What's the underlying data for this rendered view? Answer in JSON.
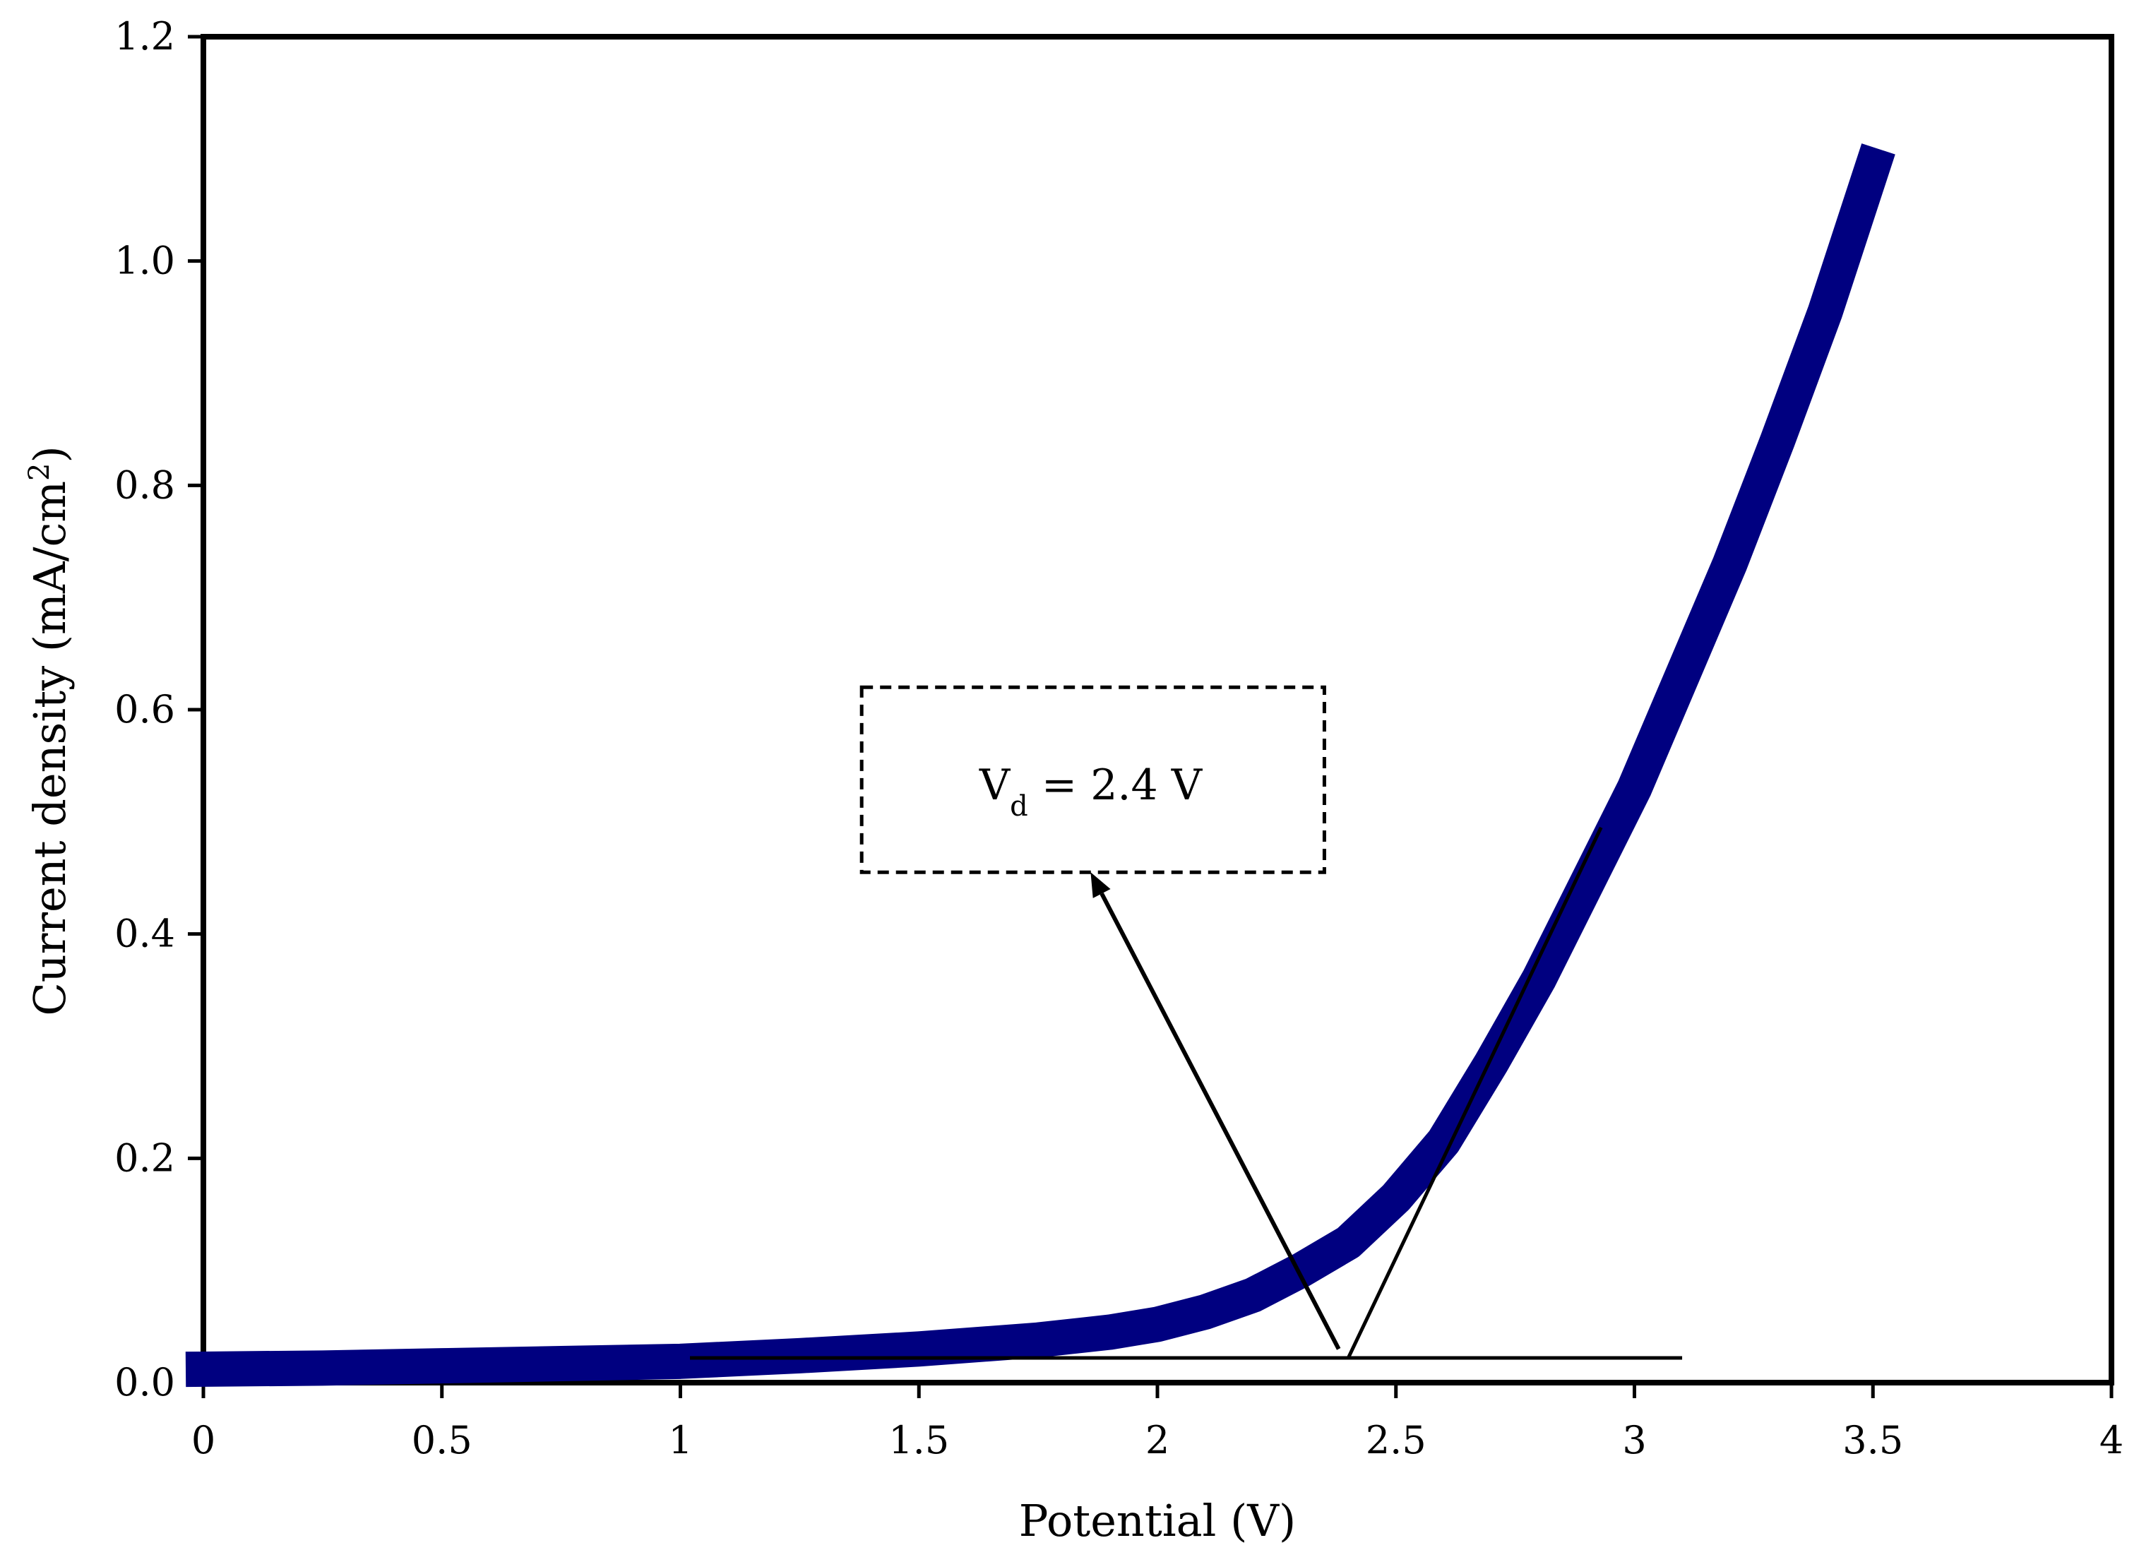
{
  "chart_data": {
    "type": "line",
    "title": "",
    "xlabel": "Potential (V)",
    "ylabel": "Current density (mA/cm",
    "ylabel_superscript": "2",
    "ylabel_suffix": ")",
    "xlim": [
      0,
      4
    ],
    "ylim": [
      0,
      1.2
    ],
    "x_ticks": [
      0,
      0.5,
      1,
      1.5,
      2,
      2.5,
      3,
      3.5,
      4
    ],
    "x_tick_labels": [
      "0",
      "0.5",
      "1",
      "1.5",
      "2",
      "2.5",
      "3",
      "3.5",
      "4"
    ],
    "y_ticks": [
      0,
      0.2,
      0.4,
      0.6,
      0.8,
      1.0,
      1.2
    ],
    "y_tick_labels": [
      "0.0",
      "0.2",
      "0.4",
      "0.6",
      "0.8",
      "1.0",
      "1.2"
    ],
    "grid": false,
    "legend": "none",
    "series": [
      {
        "color": "#000080",
        "x": [
          0,
          0.25,
          0.5,
          0.75,
          1.0,
          1.25,
          1.5,
          1.75,
          1.9,
          2.0,
          2.1,
          2.2,
          2.3,
          2.4,
          2.5,
          2.6,
          2.7,
          2.8,
          2.9,
          3.0,
          3.1,
          3.2,
          3.3,
          3.4,
          3.5
        ],
        "y": [
          0.012,
          0.013,
          0.015,
          0.017,
          0.019,
          0.024,
          0.03,
          0.038,
          0.045,
          0.052,
          0.063,
          0.078,
          0.1,
          0.125,
          0.165,
          0.215,
          0.285,
          0.36,
          0.445,
          0.53,
          0.63,
          0.73,
          0.84,
          0.955,
          1.085
        ]
      }
    ],
    "annotations": {
      "baseline": {
        "x1": 1.02,
        "x2": 3.1,
        "y": 0.022
      },
      "tangent": {
        "x1": 2.4,
        "y1": 0.022,
        "x2": 2.93,
        "y2": 0.495
      },
      "arrow": {
        "x1": 2.38,
        "y1": 0.03,
        "x2": 1.86,
        "y2": 0.455
      },
      "box": {
        "x1": 1.38,
        "x2": 2.35,
        "y1": 0.455,
        "y2": 0.62
      },
      "label": {
        "x": 1.86,
        "y": 0.52,
        "main": "V",
        "sub": "d",
        "rest": " = 2.4 V"
      }
    }
  }
}
